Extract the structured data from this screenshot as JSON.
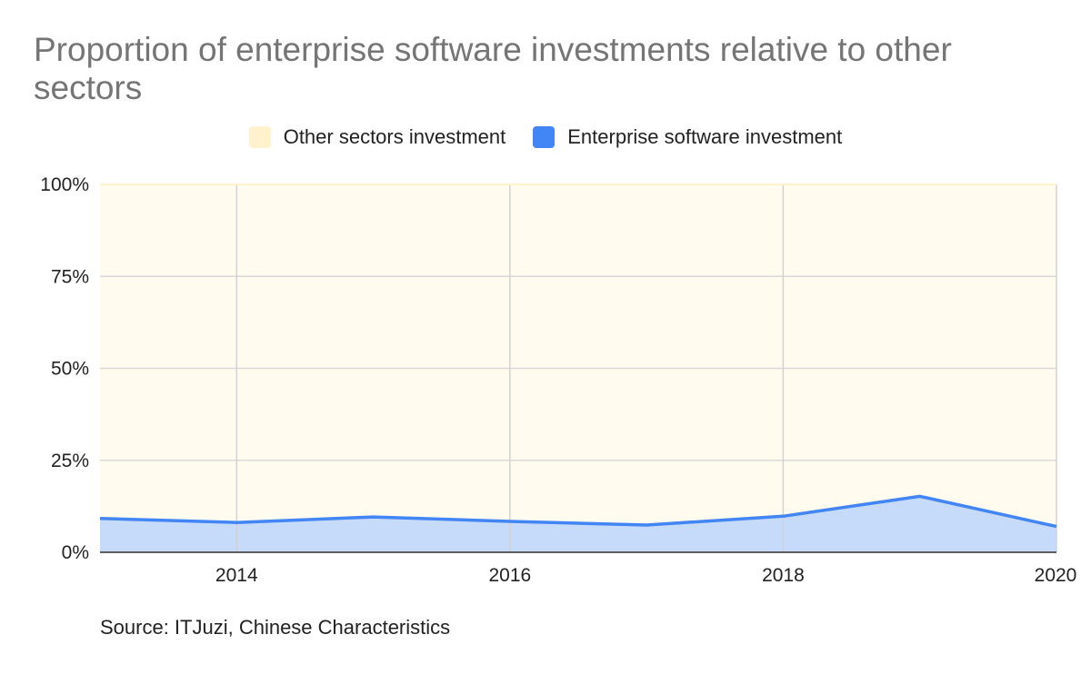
{
  "chart_data": {
    "type": "area",
    "title": "Proportion of enterprise software investments relative to other sectors",
    "x": [
      2013,
      2014,
      2015,
      2016,
      2017,
      2018,
      2019,
      2020
    ],
    "series": [
      {
        "name": "Enterprise software investment",
        "values": [
          9.2,
          8.1,
          9.6,
          8.4,
          7.4,
          9.8,
          15.2,
          7.0
        ],
        "color": "#4285f4",
        "fill": "#c6daf9"
      },
      {
        "name": "Other sectors investment",
        "values": [
          90.8,
          91.9,
          90.4,
          91.6,
          92.6,
          90.2,
          84.8,
          93.0
        ],
        "color": "#fff2cc",
        "fill": "#fffbef"
      }
    ],
    "stacking": "percent",
    "xlim": [
      2013,
      2020
    ],
    "ylim": [
      0,
      100
    ],
    "x_ticks": [
      2014,
      2016,
      2018,
      2020
    ],
    "x_tick_labels": [
      "2014",
      "2016",
      "2018",
      "2020"
    ],
    "y_ticks": [
      0,
      25,
      50,
      75,
      100
    ],
    "y_tick_labels": [
      "0%",
      "25%",
      "50%",
      "75%",
      "100%"
    ],
    "grid": true,
    "legend_position": "top",
    "xlabel": "",
    "ylabel": ""
  },
  "legend": {
    "other_label": "Other sectors investment",
    "enterprise_label": "Enterprise software investment"
  },
  "source": "Source: ITJuzi, Chinese Characteristics"
}
